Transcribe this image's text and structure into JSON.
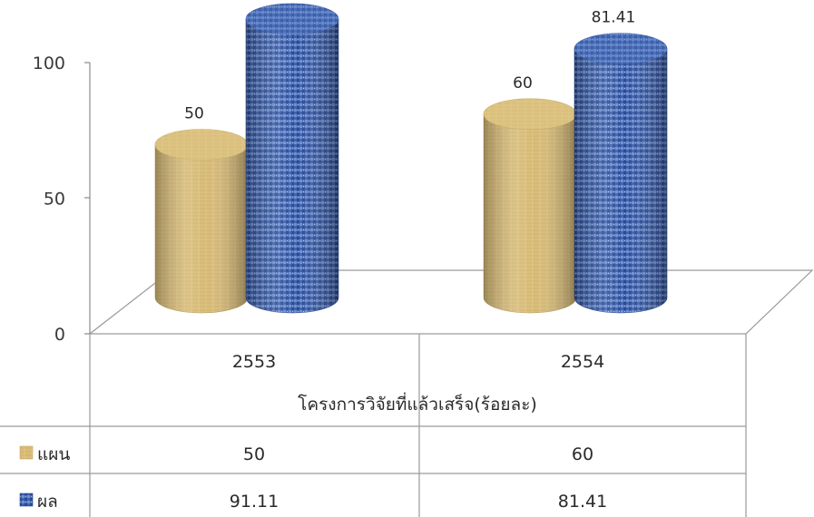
{
  "chart_data": {
    "type": "bar",
    "xlabel": "โครงการวิจัยที่แล้วเสร็จ(ร้อยละ)",
    "categories": [
      "2553",
      "2554"
    ],
    "ylim": [
      0,
      100
    ],
    "yticks": [
      "0",
      "50",
      "100"
    ],
    "series": [
      {
        "name": "แผน",
        "values": [
          50,
          60
        ],
        "labels": [
          "50",
          "60"
        ],
        "color": "#d9bd79"
      },
      {
        "name": "ผล",
        "values": [
          91.11,
          81.41
        ],
        "labels": [
          "91.11",
          "81.41"
        ],
        "color": "#3f63b0"
      }
    ],
    "grid": false,
    "legend": "data-table-left",
    "style": "3d-cylinder"
  }
}
